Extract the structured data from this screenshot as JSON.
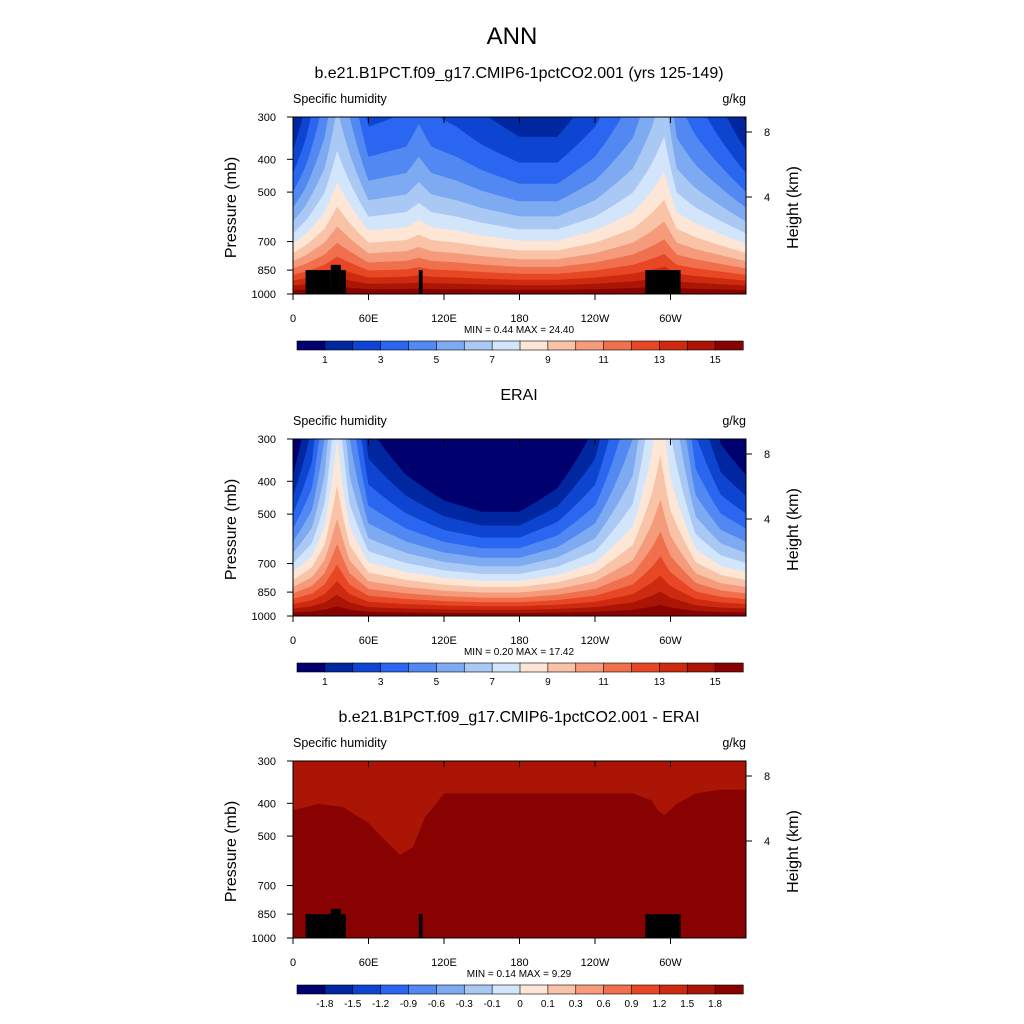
{
  "figure": {
    "title": "ANN"
  },
  "chart_data": [
    {
      "type": "heatmap",
      "title": "b.e21.B1PCT.f09_g17.CMIP6-1pctCO2.001 (yrs 125-149)",
      "left_label": "Specific humidity",
      "right_label": "g/kg",
      "ylabel": "Pressure (mb)",
      "ylabel_right": "Height (km)",
      "x_ticks": [
        "0",
        "60E",
        "120E",
        "180",
        "120W",
        "60W"
      ],
      "y_ticks": [
        "300",
        "400",
        "500",
        "700",
        "850",
        "1000"
      ],
      "height_ticks": [
        "8",
        "4"
      ],
      "stats": "MIN =   0.44  MAX =  24.40",
      "min": 0.44,
      "max": 24.4,
      "ylim": [
        1000,
        300
      ],
      "xlim": [
        0,
        360
      ],
      "colorbar": {
        "labels": [
          "1",
          "3",
          "5",
          "7",
          "9",
          "11",
          "13",
          "15"
        ],
        "colors": [
          "#00006e",
          "#00279f",
          "#0d45d0",
          "#2a66f0",
          "#5188f2",
          "#7eaaf2",
          "#a9c9f4",
          "#d3e5fb",
          "#fde6d6",
          "#f9c3a8",
          "#f59b7b",
          "#f0704d",
          "#e84726",
          "#cd2a10",
          "#aa1506",
          "#870200"
        ]
      },
      "profile_note": "moist layer depth (mb above 1000) vs longitude",
      "profile_lon": [
        0,
        10,
        25,
        35,
        45,
        60,
        90,
        100,
        110,
        130,
        150,
        180,
        210,
        240,
        270,
        285,
        295,
        305,
        320,
        340,
        360
      ],
      "profile_depth": [
        95,
        110,
        140,
        175,
        150,
        115,
        120,
        130,
        120,
        115,
        108,
        100,
        100,
        115,
        140,
        165,
        185,
        140,
        125,
        110,
        95
      ],
      "topography": [
        [
          10,
          30,
          850
        ],
        [
          30,
          38,
          820
        ],
        [
          38,
          42,
          850
        ],
        [
          100,
          103,
          850
        ],
        [
          280,
          308,
          850
        ]
      ]
    },
    {
      "type": "heatmap",
      "title": "ERAI",
      "left_label": "Specific humidity",
      "right_label": "g/kg",
      "ylabel": "Pressure (mb)",
      "ylabel_right": "Height (km)",
      "x_ticks": [
        "0",
        "60E",
        "120E",
        "180",
        "120W",
        "60W"
      ],
      "y_ticks": [
        "300",
        "400",
        "500",
        "700",
        "850",
        "1000"
      ],
      "height_ticks": [
        "8",
        "4"
      ],
      "stats": "MIN =   0.20  MAX =  17.42",
      "min": 0.2,
      "max": 17.42,
      "ylim": [
        1000,
        300
      ],
      "xlim": [
        0,
        360
      ],
      "colorbar": {
        "labels": [
          "1",
          "3",
          "5",
          "7",
          "9",
          "11",
          "13",
          "15"
        ],
        "colors": [
          "#00006e",
          "#00279f",
          "#0d45d0",
          "#2a66f0",
          "#5188f2",
          "#7eaaf2",
          "#a9c9f4",
          "#d3e5fb",
          "#fde6d6",
          "#f9c3a8",
          "#f59b7b",
          "#f0704d",
          "#e84726",
          "#cd2a10",
          "#aa1506",
          "#870200"
        ]
      },
      "profile_note": "moist layer depth (mb above 1000) vs longitude",
      "profile_lon": [
        0,
        15,
        25,
        35,
        45,
        60,
        90,
        120,
        150,
        180,
        210,
        240,
        270,
        285,
        292,
        300,
        320,
        340,
        360
      ],
      "profile_depth": [
        85,
        110,
        150,
        230,
        150,
        100,
        85,
        75,
        70,
        70,
        80,
        100,
        150,
        220,
        260,
        200,
        120,
        95,
        85
      ],
      "topography": []
    },
    {
      "type": "heatmap",
      "title": "b.e21.B1PCT.f09_g17.CMIP6-1pctCO2.001 - ERAI",
      "left_label": "Specific humidity",
      "right_label": "g/kg",
      "ylabel": "Pressure (mb)",
      "ylabel_right": "Height (km)",
      "x_ticks": [
        "0",
        "60E",
        "120E",
        "180",
        "120W",
        "60W"
      ],
      "y_ticks": [
        "300",
        "400",
        "500",
        "700",
        "850",
        "1000"
      ],
      "height_ticks": [
        "8",
        "4"
      ],
      "stats": "MIN =   0.14  MAX =   9.29",
      "min": 0.14,
      "max": 9.29,
      "ylim": [
        1000,
        300
      ],
      "xlim": [
        0,
        360
      ],
      "colorbar": {
        "labels": [
          "-1.8",
          "-1.5",
          "-1.2",
          "-0.9",
          "-0.6",
          "-0.3",
          "-0.1",
          "0",
          "0.1",
          "0.3",
          "0.6",
          "0.9",
          "1.2",
          "1.5",
          "1.8"
        ],
        "colors": [
          "#00006e",
          "#00279f",
          "#0d45d0",
          "#2a66f0",
          "#5188f2",
          "#7eaaf2",
          "#a9c9f4",
          "#d3e5fb",
          "#fde6d6",
          "#f9c3a8",
          "#f59b7b",
          "#f0704d",
          "#e84726",
          "#cd2a10",
          "#aa1506",
          "#870200"
        ]
      },
      "profile_note": "level (mb) of the saturated top of the dark-red region vs longitude",
      "profile_lon": [
        0,
        20,
        40,
        60,
        75,
        85,
        95,
        105,
        120,
        150,
        180,
        210,
        240,
        270,
        285,
        290,
        295,
        305,
        320,
        340,
        360
      ],
      "profile_top": [
        430,
        410,
        420,
        470,
        540,
        590,
        560,
        450,
        380,
        380,
        380,
        380,
        380,
        380,
        400,
        430,
        445,
        410,
        380,
        370,
        370
      ],
      "topography": [
        [
          10,
          30,
          850
        ],
        [
          30,
          38,
          820
        ],
        [
          38,
          42,
          850
        ],
        [
          100,
          103,
          850
        ],
        [
          280,
          308,
          850
        ]
      ]
    }
  ]
}
